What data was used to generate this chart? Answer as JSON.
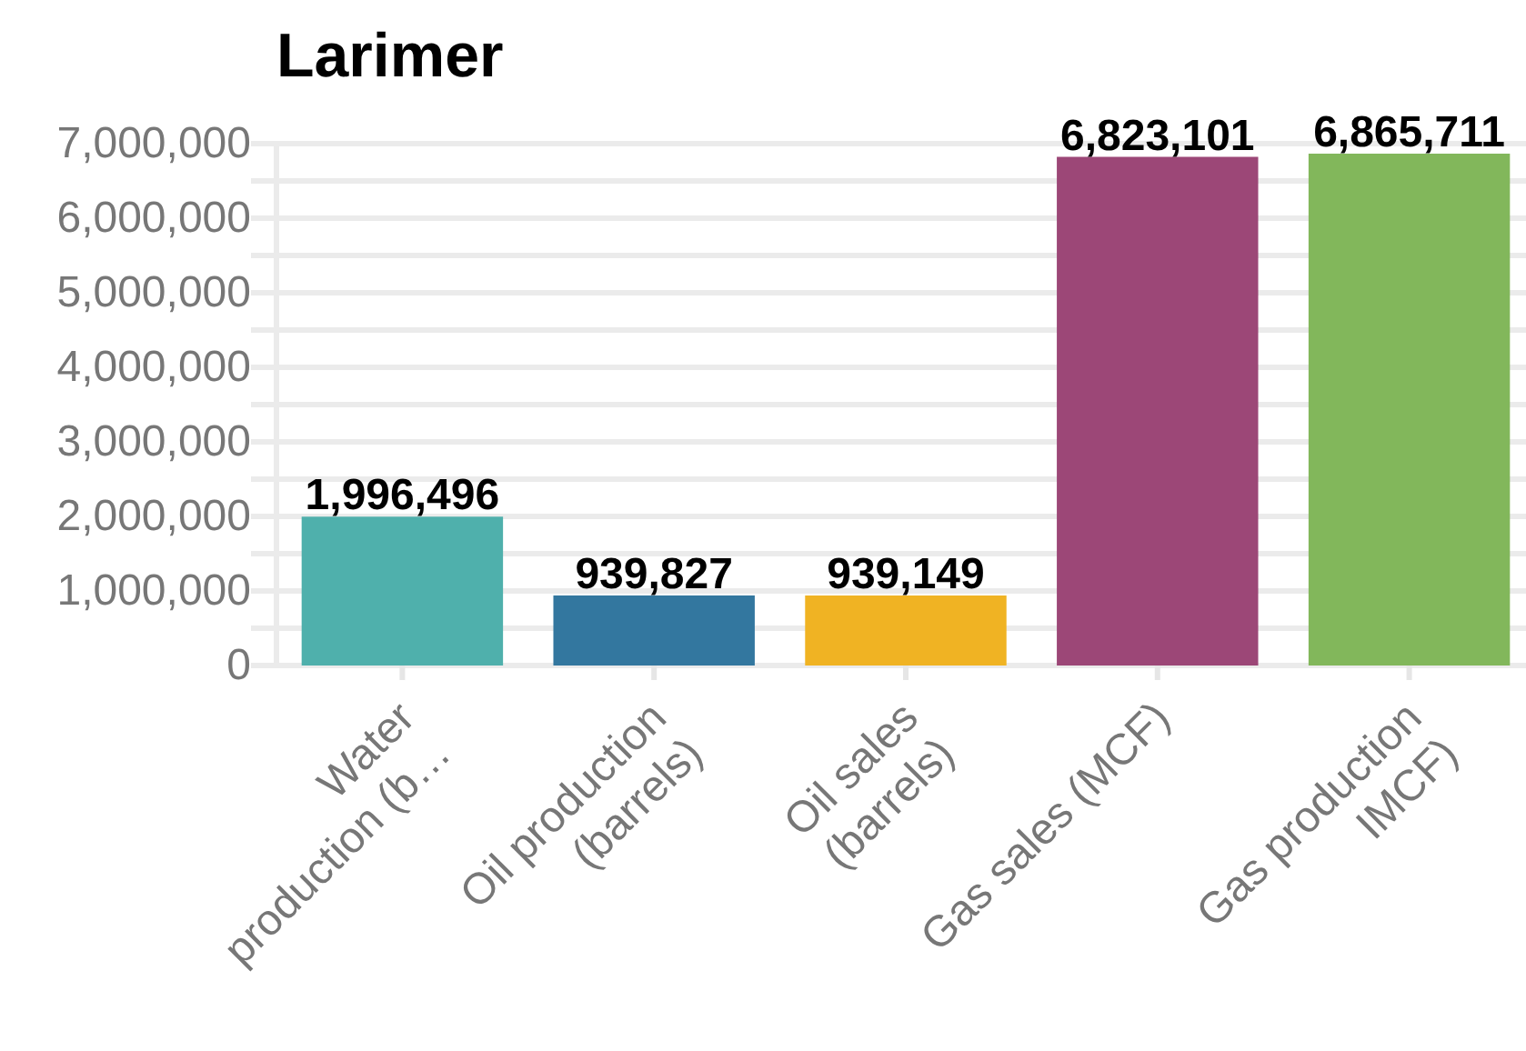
{
  "chart_data": {
    "type": "bar",
    "title": "Larimer",
    "categories": [
      "Water production (b…",
      "Oil production (barrels)",
      "Oil sales (barrels)",
      "Gas sales (MCF)",
      "Gas production IMCF)"
    ],
    "values": [
      1996496,
      939827,
      939149,
      6823101,
      6865711
    ],
    "value_labels": [
      "1,996,496",
      "939,827",
      "939,149",
      "6,823,101",
      "6,865,711"
    ],
    "colors": [
      "#4fb0ac",
      "#33779f",
      "#f0b323",
      "#9c4777",
      "#82b75b"
    ],
    "ylim": [
      0,
      7000000
    ],
    "yticks": [
      0,
      {
        "value": 500000,
        "label": null
      },
      {
        "value": 1000000,
        "label": "1,000,000"
      },
      {
        "value": 1500000,
        "label": null
      },
      {
        "value": 2000000,
        "label": "2,000,000"
      },
      {
        "value": 2500000,
        "label": null
      },
      {
        "value": 3000000,
        "label": "3,000,000"
      },
      {
        "value": 3500000,
        "label": null
      },
      {
        "value": 4000000,
        "label": "4,000,000"
      },
      {
        "value": 4500000,
        "label": null
      },
      {
        "value": 5000000,
        "label": "5,000,000"
      },
      {
        "value": 5500000,
        "label": null
      },
      {
        "value": 6000000,
        "label": "6,000,000"
      },
      {
        "value": 6500000,
        "label": null
      },
      {
        "value": 7000000,
        "label": "7,000,000"
      }
    ],
    "grid": true
  }
}
